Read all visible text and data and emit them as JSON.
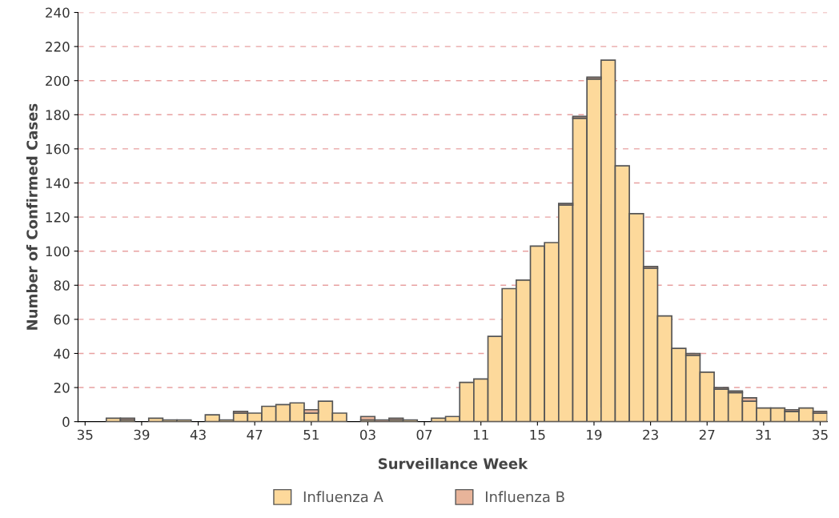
{
  "chart_data": {
    "type": "bar",
    "stacked": true,
    "xlabel": "Surveillance Week",
    "ylabel": "Number of Confirmed Cases",
    "categories": [
      "35",
      null,
      null,
      null,
      "39",
      null,
      null,
      null,
      "43",
      null,
      null,
      null,
      "47",
      null,
      null,
      null,
      "51",
      null,
      null,
      null,
      "03",
      null,
      null,
      null,
      "07",
      null,
      null,
      null,
      "11",
      null,
      null,
      null,
      "15",
      null,
      null,
      null,
      "19",
      null,
      null,
      null,
      "23",
      null,
      null,
      null,
      "27",
      null,
      null,
      null,
      "31",
      null,
      null,
      null,
      "35"
    ],
    "series": [
      {
        "name": "Influenza A",
        "color": "#fdd99b",
        "values": [
          0,
          0,
          2,
          1,
          0,
          2,
          1,
          1,
          0,
          4,
          1,
          5,
          5,
          9,
          10,
          11,
          5,
          12,
          5,
          0,
          1,
          0,
          1,
          1,
          0,
          2,
          3,
          23,
          25,
          50,
          78,
          83,
          103,
          105,
          127,
          178,
          201,
          212,
          150,
          122,
          90,
          62,
          43,
          39,
          29,
          19,
          17,
          12,
          8,
          8,
          6,
          8,
          5
        ]
      },
      {
        "name": "Influenza B",
        "color": "#e8b49a",
        "values": [
          0,
          0,
          0,
          1,
          0,
          0,
          0,
          0,
          0,
          0,
          0,
          1,
          0,
          0,
          0,
          0,
          2,
          0,
          0,
          0,
          2,
          1,
          1,
          0,
          0,
          0,
          0,
          0,
          0,
          0,
          0,
          0,
          0,
          0,
          1,
          1,
          1,
          0,
          0,
          0,
          1,
          0,
          0,
          1,
          0,
          1,
          1,
          2,
          0,
          0,
          1,
          0,
          1
        ]
      }
    ],
    "ylim": [
      0,
      240
    ],
    "yticks": [
      0,
      20,
      40,
      60,
      80,
      100,
      120,
      140,
      160,
      180,
      200,
      220,
      240
    ],
    "grid": "y",
    "legend": "bottom"
  }
}
